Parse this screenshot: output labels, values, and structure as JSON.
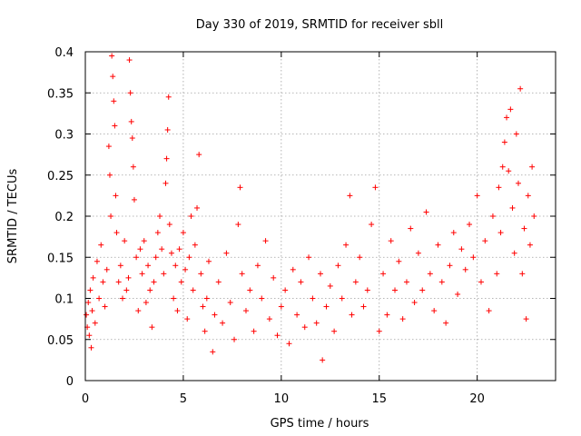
{
  "chart_data": {
    "type": "scatter",
    "title": "Day 330 of 2019, SRMTID for receiver sbll",
    "xlabel": "GPS time / hours",
    "ylabel": "SRMTID / TECUs",
    "xlim": [
      0,
      24
    ],
    "ylim": [
      0,
      0.4
    ],
    "xticks": [
      0,
      5,
      10,
      15,
      20
    ],
    "xtick_labels": [
      "0",
      "5",
      "10",
      "15",
      "20"
    ],
    "yticks": [
      0,
      0.05,
      0.1,
      0.15,
      0.2,
      0.25,
      0.3,
      0.35,
      0.4
    ],
    "ytick_labels": [
      "0",
      "0.05",
      "0.1",
      "0.15",
      "0.2",
      "0.25",
      "0.3",
      "0.35",
      "0.4"
    ],
    "grid": true,
    "marker": "plus",
    "color": "#ff0000",
    "points": [
      [
        0.05,
        0.08
      ],
      [
        0.1,
        0.065
      ],
      [
        0.15,
        0.095
      ],
      [
        0.2,
        0.055
      ],
      [
        0.25,
        0.11
      ],
      [
        0.3,
        0.04
      ],
      [
        0.35,
        0.085
      ],
      [
        0.4,
        0.125
      ],
      [
        0.5,
        0.07
      ],
      [
        0.6,
        0.145
      ],
      [
        0.7,
        0.1
      ],
      [
        0.8,
        0.165
      ],
      [
        0.9,
        0.12
      ],
      [
        1.0,
        0.09
      ],
      [
        1.1,
        0.135
      ],
      [
        1.2,
        0.285
      ],
      [
        1.25,
        0.25
      ],
      [
        1.3,
        0.2
      ],
      [
        1.35,
        0.395
      ],
      [
        1.4,
        0.37
      ],
      [
        1.45,
        0.34
      ],
      [
        1.5,
        0.31
      ],
      [
        1.55,
        0.225
      ],
      [
        1.6,
        0.18
      ],
      [
        1.7,
        0.12
      ],
      [
        1.8,
        0.14
      ],
      [
        1.9,
        0.1
      ],
      [
        2.0,
        0.17
      ],
      [
        2.1,
        0.11
      ],
      [
        2.2,
        0.125
      ],
      [
        2.25,
        0.39
      ],
      [
        2.3,
        0.35
      ],
      [
        2.35,
        0.315
      ],
      [
        2.4,
        0.295
      ],
      [
        2.45,
        0.26
      ],
      [
        2.5,
        0.22
      ],
      [
        2.6,
        0.15
      ],
      [
        2.7,
        0.085
      ],
      [
        2.8,
        0.16
      ],
      [
        2.9,
        0.13
      ],
      [
        3.0,
        0.17
      ],
      [
        3.1,
        0.095
      ],
      [
        3.2,
        0.14
      ],
      [
        3.3,
        0.11
      ],
      [
        3.4,
        0.065
      ],
      [
        3.5,
        0.12
      ],
      [
        3.6,
        0.15
      ],
      [
        3.7,
        0.18
      ],
      [
        3.8,
        0.2
      ],
      [
        3.9,
        0.16
      ],
      [
        4.0,
        0.13
      ],
      [
        4.1,
        0.24
      ],
      [
        4.15,
        0.27
      ],
      [
        4.2,
        0.305
      ],
      [
        4.25,
        0.345
      ],
      [
        4.3,
        0.19
      ],
      [
        4.4,
        0.155
      ],
      [
        4.5,
        0.1
      ],
      [
        4.6,
        0.14
      ],
      [
        4.7,
        0.085
      ],
      [
        4.8,
        0.16
      ],
      [
        4.9,
        0.12
      ],
      [
        5.0,
        0.18
      ],
      [
        5.1,
        0.135
      ],
      [
        5.2,
        0.075
      ],
      [
        5.3,
        0.15
      ],
      [
        5.4,
        0.2
      ],
      [
        5.5,
        0.11
      ],
      [
        5.6,
        0.165
      ],
      [
        5.7,
        0.21
      ],
      [
        5.8,
        0.275
      ],
      [
        5.9,
        0.13
      ],
      [
        6.0,
        0.09
      ],
      [
        6.1,
        0.06
      ],
      [
        6.2,
        0.1
      ],
      [
        6.3,
        0.145
      ],
      [
        6.5,
        0.035
      ],
      [
        6.6,
        0.08
      ],
      [
        6.8,
        0.12
      ],
      [
        7.0,
        0.07
      ],
      [
        7.2,
        0.155
      ],
      [
        7.4,
        0.095
      ],
      [
        7.6,
        0.05
      ],
      [
        7.8,
        0.19
      ],
      [
        7.9,
        0.235
      ],
      [
        8.0,
        0.13
      ],
      [
        8.2,
        0.085
      ],
      [
        8.4,
        0.11
      ],
      [
        8.6,
        0.06
      ],
      [
        8.8,
        0.14
      ],
      [
        9.0,
        0.1
      ],
      [
        9.2,
        0.17
      ],
      [
        9.4,
        0.075
      ],
      [
        9.6,
        0.125
      ],
      [
        9.8,
        0.055
      ],
      [
        10.0,
        0.09
      ],
      [
        10.2,
        0.11
      ],
      [
        10.4,
        0.045
      ],
      [
        10.6,
        0.135
      ],
      [
        10.8,
        0.08
      ],
      [
        11.0,
        0.12
      ],
      [
        11.2,
        0.065
      ],
      [
        11.4,
        0.15
      ],
      [
        11.6,
        0.1
      ],
      [
        11.8,
        0.07
      ],
      [
        12.0,
        0.13
      ],
      [
        12.1,
        0.025
      ],
      [
        12.3,
        0.09
      ],
      [
        12.5,
        0.115
      ],
      [
        12.7,
        0.06
      ],
      [
        12.9,
        0.14
      ],
      [
        13.1,
        0.1
      ],
      [
        13.3,
        0.165
      ],
      [
        13.5,
        0.225
      ],
      [
        13.6,
        0.08
      ],
      [
        13.8,
        0.12
      ],
      [
        14.0,
        0.15
      ],
      [
        14.2,
        0.09
      ],
      [
        14.4,
        0.11
      ],
      [
        14.6,
        0.19
      ],
      [
        14.8,
        0.235
      ],
      [
        15.0,
        0.06
      ],
      [
        15.2,
        0.13
      ],
      [
        15.4,
        0.08
      ],
      [
        15.6,
        0.17
      ],
      [
        15.8,
        0.11
      ],
      [
        16.0,
        0.145
      ],
      [
        16.2,
        0.075
      ],
      [
        16.4,
        0.12
      ],
      [
        16.6,
        0.185
      ],
      [
        16.8,
        0.095
      ],
      [
        17.0,
        0.155
      ],
      [
        17.2,
        0.11
      ],
      [
        17.4,
        0.205
      ],
      [
        17.6,
        0.13
      ],
      [
        17.8,
        0.085
      ],
      [
        18.0,
        0.165
      ],
      [
        18.2,
        0.12
      ],
      [
        18.4,
        0.07
      ],
      [
        18.6,
        0.14
      ],
      [
        18.8,
        0.18
      ],
      [
        19.0,
        0.105
      ],
      [
        19.2,
        0.16
      ],
      [
        19.4,
        0.135
      ],
      [
        19.6,
        0.19
      ],
      [
        19.8,
        0.15
      ],
      [
        20.0,
        0.225
      ],
      [
        20.2,
        0.12
      ],
      [
        20.4,
        0.17
      ],
      [
        20.6,
        0.085
      ],
      [
        20.8,
        0.2
      ],
      [
        21.0,
        0.13
      ],
      [
        21.1,
        0.235
      ],
      [
        21.2,
        0.18
      ],
      [
        21.3,
        0.26
      ],
      [
        21.4,
        0.29
      ],
      [
        21.5,
        0.32
      ],
      [
        21.6,
        0.255
      ],
      [
        21.7,
        0.33
      ],
      [
        21.8,
        0.21
      ],
      [
        21.9,
        0.155
      ],
      [
        22.0,
        0.3
      ],
      [
        22.1,
        0.24
      ],
      [
        22.2,
        0.355
      ],
      [
        22.3,
        0.13
      ],
      [
        22.4,
        0.185
      ],
      [
        22.5,
        0.075
      ],
      [
        22.6,
        0.225
      ],
      [
        22.7,
        0.165
      ],
      [
        22.8,
        0.26
      ],
      [
        22.9,
        0.2
      ]
    ]
  }
}
